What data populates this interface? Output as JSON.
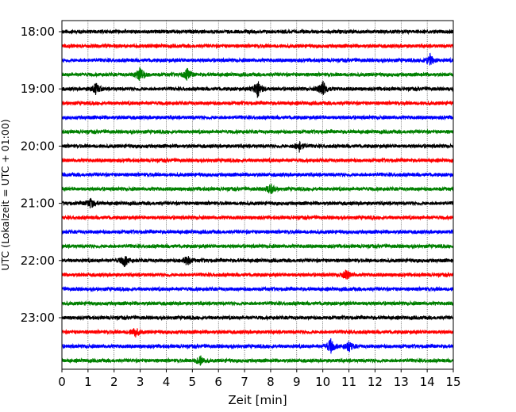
{
  "chart_data": {
    "type": "line",
    "subtype": "helicorder (seismogram traces, 15 min per line)",
    "xlabel": "Zeit  [min]",
    "ylabel": "UTC (Lokalzeit = UTC + 01:00)",
    "xlim": [
      0,
      15
    ],
    "x_ticks": [
      0,
      1,
      2,
      3,
      4,
      5,
      6,
      7,
      8,
      9,
      10,
      11,
      12,
      13,
      14,
      15
    ],
    "y_tick_labels": [
      "18:00",
      "19:00",
      "20:00",
      "21:00",
      "22:00",
      "23:00"
    ],
    "trace_start_times": [
      "18:00",
      "18:15",
      "18:30",
      "18:45",
      "19:00",
      "19:15",
      "19:30",
      "19:45",
      "20:00",
      "20:15",
      "20:30",
      "20:45",
      "21:00",
      "21:15",
      "21:30",
      "21:45",
      "22:00",
      "22:15",
      "22:30",
      "22:45",
      "23:00",
      "23:15",
      "23:30",
      "23:45"
    ],
    "trace_color_cycle": [
      "#000000",
      "#ff0000",
      "#0000ff",
      "#008000"
    ],
    "vertical_gridlines": "dotted at every minute",
    "events": [
      {
        "trace": 3,
        "minute": 3.0,
        "amplitude": 2.2
      },
      {
        "trace": 3,
        "minute": 4.8,
        "amplitude": 1.5
      },
      {
        "trace": 4,
        "minute": 7.5,
        "amplitude": 2.6
      },
      {
        "trace": 4,
        "minute": 10.0,
        "amplitude": 2.2
      },
      {
        "trace": 4,
        "minute": 1.3,
        "amplitude": 1.5
      },
      {
        "trace": 2,
        "minute": 14.1,
        "amplitude": 1.6
      },
      {
        "trace": 8,
        "minute": 9.1,
        "amplitude": 1.4
      },
      {
        "trace": 11,
        "minute": 8.0,
        "amplitude": 1.4
      },
      {
        "trace": 12,
        "minute": 1.1,
        "amplitude": 1.4
      },
      {
        "trace": 16,
        "minute": 2.4,
        "amplitude": 1.6
      },
      {
        "trace": 16,
        "minute": 4.8,
        "amplitude": 1.3
      },
      {
        "trace": 17,
        "minute": 10.9,
        "amplitude": 1.2
      },
      {
        "trace": 21,
        "minute": 2.8,
        "amplitude": 1.3
      },
      {
        "trace": 22,
        "minute": 10.3,
        "amplitude": 2.0
      },
      {
        "trace": 22,
        "minute": 11.0,
        "amplitude": 1.4
      },
      {
        "trace": 23,
        "minute": 5.3,
        "amplitude": 1.3
      }
    ]
  }
}
